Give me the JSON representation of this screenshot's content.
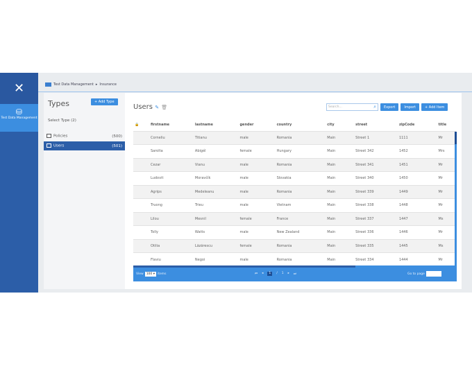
{
  "sidebar": {
    "nav_label": "Test Data Management"
  },
  "breadcrumb": {
    "root": "Test Data Management",
    "current": "Insurance"
  },
  "types": {
    "title": "Types",
    "add_label": "+ Add Type",
    "select_label": "Select Type (2)",
    "items": [
      {
        "label": "Policies",
        "count": "(500)"
      },
      {
        "label": "Users",
        "count": "(501)",
        "active": true
      }
    ]
  },
  "main": {
    "title": "Users",
    "search_placeholder": "Search...",
    "export_label": "Export",
    "import_label": "Import",
    "add_item_label": "+ Add Item"
  },
  "table": {
    "columns": [
      "firstname",
      "lastname",
      "gender",
      "country",
      "city",
      "street",
      "zipCode",
      "title"
    ],
    "rows": [
      [
        "Corneliu",
        "Titianu",
        "male",
        "Romania",
        "Main",
        "Street 1",
        "1111",
        "Mr"
      ],
      [
        "Sarolta",
        "Abigél",
        "female",
        "Hungary",
        "Main",
        "Street 342",
        "1452",
        "Mrs"
      ],
      [
        "Cezar",
        "Vianu",
        "male",
        "Romania",
        "Main",
        "Street 341",
        "1451",
        "Mr"
      ],
      [
        "Ludovit",
        "Moravčík",
        "male",
        "Slovakia",
        "Main",
        "Street 340",
        "1450",
        "Mr"
      ],
      [
        "Agrips",
        "Medeleanu",
        "male",
        "Romania",
        "Main",
        "Street 339",
        "1449",
        "Mr"
      ],
      [
        "Truong",
        "Trieu",
        "male",
        "Vietnam",
        "Main",
        "Street 338",
        "1448",
        "Mr"
      ],
      [
        "Lilou",
        "Mesnil",
        "female",
        "France",
        "Main",
        "Street 337",
        "1447",
        "Ms"
      ],
      [
        "Tolly",
        "Watts",
        "male",
        "New Zealand",
        "Main",
        "Street 336",
        "1446",
        "Mr"
      ],
      [
        "Otilia",
        "Lăzărescu",
        "female",
        "Romania",
        "Main",
        "Street 335",
        "1445",
        "Ms"
      ],
      [
        "Flaviu",
        "Negoi",
        "male",
        "Romania",
        "Main",
        "Street 334",
        "1444",
        "Mr"
      ]
    ]
  },
  "footer": {
    "view_label": "View",
    "page_size": "100 ▾",
    "rows_label": "items",
    "current_page": "1",
    "separator": "/",
    "total_pages": "1",
    "goto_label": "Go to page"
  },
  "colors": {
    "primary": "#3c8ee0",
    "dark": "#2c5ea8"
  }
}
